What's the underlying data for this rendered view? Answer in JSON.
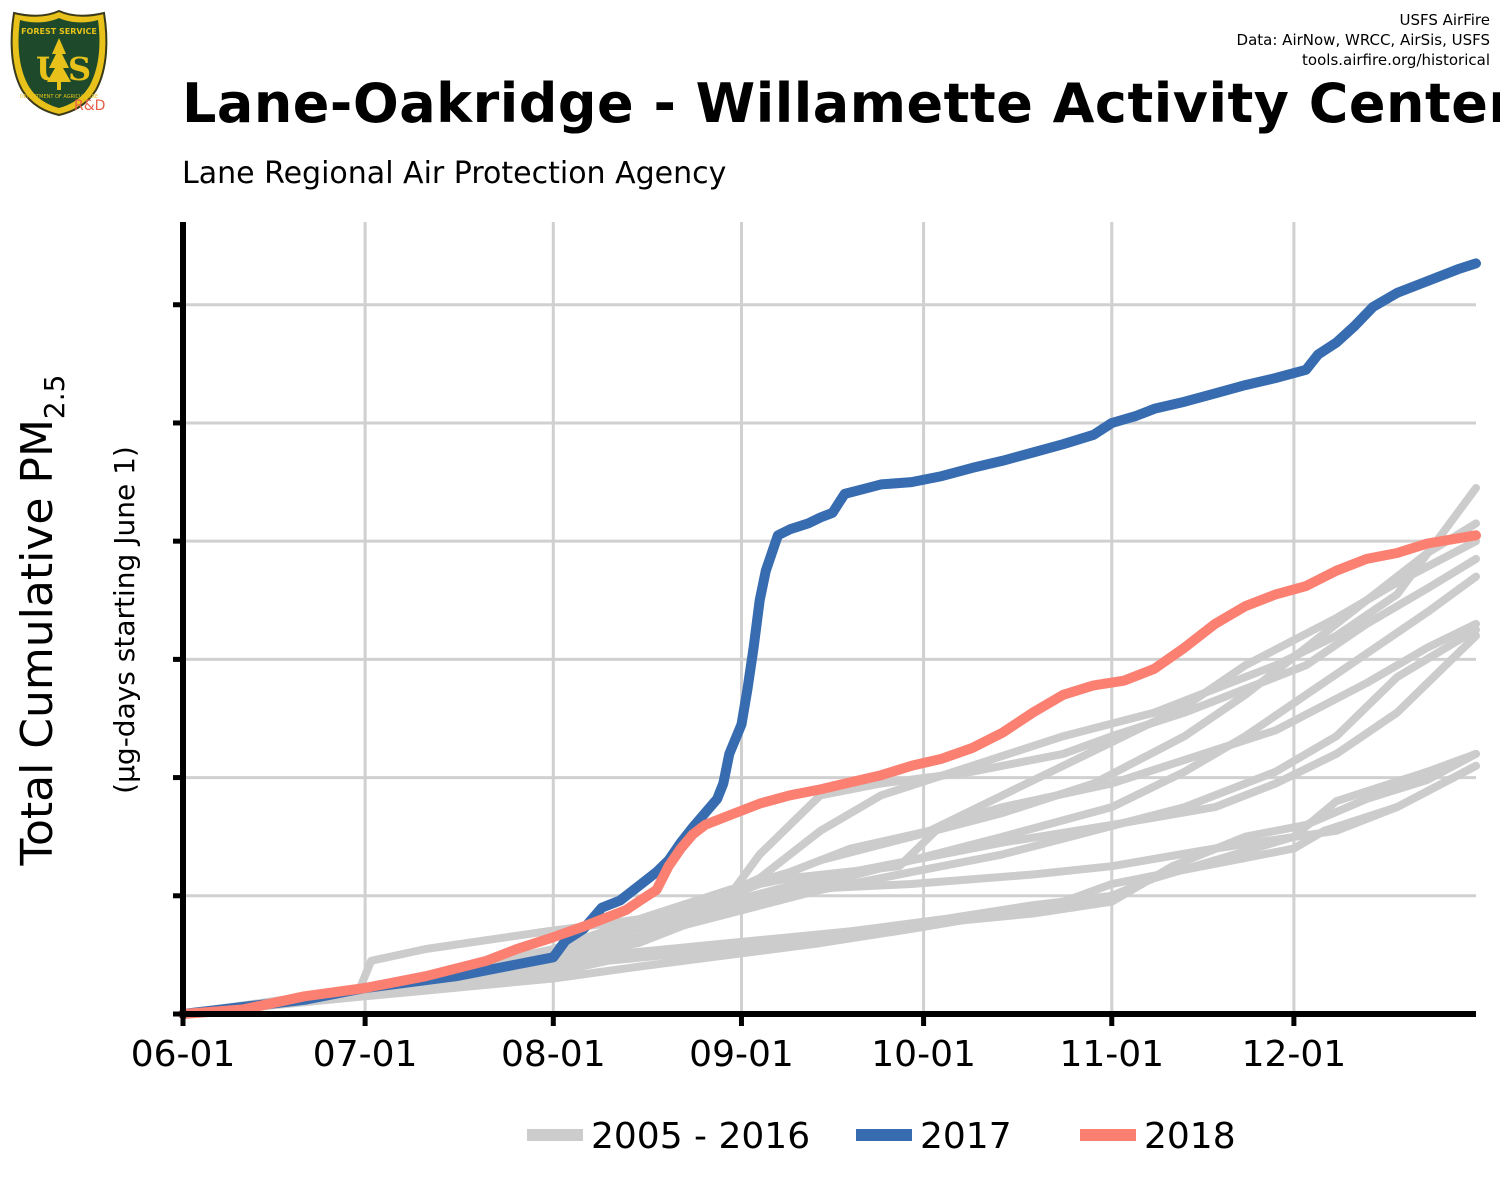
{
  "header": {
    "title": "Lane-Oakridge - Willamette Activity Center",
    "subtitle": "Lane Regional Air Protection Agency",
    "credits": [
      "USFS AirFire",
      "Data: AirNow, WRCC, AirSis, USFS",
      "tools.airfire.org/historical"
    ]
  },
  "logo": {
    "text_top": "FOREST SERVICE",
    "text_main": "US",
    "text_bottom": "DEPARTMENT OF AGRICULTURE",
    "tag": "R&D",
    "colors": {
      "shield": "#1e4a2b",
      "border": "#e8c21a",
      "tag": "#e8604c"
    }
  },
  "chart_data": {
    "type": "line",
    "title": "Lane-Oakridge - Willamette Activity Center",
    "subtitle": "Lane Regional Air Protection Agency",
    "xlabel": "",
    "ylabel": "Total Cumulative PM",
    "ylabel_subscript": "2.5",
    "ylabel_units": "(µg-days starting June 1)",
    "x_tick_labels": [
      "06-01",
      "07-01",
      "08-01",
      "09-01",
      "10-01",
      "11-01",
      "12-01"
    ],
    "x_tick_days": [
      0,
      30,
      61,
      92,
      122,
      153,
      183
    ],
    "x_range_days": [
      0,
      213
    ],
    "y_range": [
      0,
      6.7
    ],
    "y_ticks": [
      0,
      1,
      2,
      3,
      4,
      5,
      6
    ],
    "y_tick_labels_shown": false,
    "grid": true,
    "legend_position": "bottom",
    "legend": [
      {
        "label": "2005 - 2016",
        "color": "#cccccc"
      },
      {
        "label": "2017",
        "color": "#386cb0"
      },
      {
        "label": "2018",
        "color": "#fb8072"
      }
    ],
    "series": [
      {
        "name": "2017",
        "color": "#386cb0",
        "width": 10,
        "points": [
          [
            0,
            0
          ],
          [
            10,
            0.06
          ],
          [
            20,
            0.12
          ],
          [
            30,
            0.22
          ],
          [
            45,
            0.32
          ],
          [
            55,
            0.42
          ],
          [
            61,
            0.48
          ],
          [
            62,
            0.55
          ],
          [
            63,
            0.62
          ],
          [
            66,
            0.72
          ],
          [
            69,
            0.9
          ],
          [
            72,
            0.96
          ],
          [
            75,
            1.08
          ],
          [
            78,
            1.2
          ],
          [
            80,
            1.3
          ],
          [
            82,
            1.45
          ],
          [
            84,
            1.58
          ],
          [
            86,
            1.7
          ],
          [
            88,
            1.82
          ],
          [
            89,
            1.95
          ],
          [
            90,
            2.2
          ],
          [
            92,
            2.45
          ],
          [
            93,
            2.75
          ],
          [
            94,
            3.1
          ],
          [
            95,
            3.5
          ],
          [
            96,
            3.75
          ],
          [
            98,
            4.05
          ],
          [
            100,
            4.1
          ],
          [
            103,
            4.15
          ],
          [
            105,
            4.2
          ],
          [
            107,
            4.24
          ],
          [
            108,
            4.32
          ],
          [
            109,
            4.4
          ],
          [
            112,
            4.44
          ],
          [
            115,
            4.48
          ],
          [
            120,
            4.5
          ],
          [
            125,
            4.55
          ],
          [
            130,
            4.62
          ],
          [
            135,
            4.68
          ],
          [
            140,
            4.75
          ],
          [
            145,
            4.82
          ],
          [
            150,
            4.9
          ],
          [
            153,
            5.0
          ],
          [
            157,
            5.06
          ],
          [
            160,
            5.12
          ],
          [
            165,
            5.18
          ],
          [
            170,
            5.25
          ],
          [
            175,
            5.32
          ],
          [
            180,
            5.38
          ],
          [
            185,
            5.45
          ],
          [
            187,
            5.58
          ],
          [
            190,
            5.68
          ],
          [
            193,
            5.82
          ],
          [
            196,
            5.98
          ],
          [
            200,
            6.1
          ],
          [
            205,
            6.2
          ],
          [
            210,
            6.3
          ],
          [
            213,
            6.35
          ]
        ]
      },
      {
        "name": "2018",
        "color": "#fb8072",
        "width": 10,
        "points": [
          [
            0,
            0
          ],
          [
            10,
            0.04
          ],
          [
            20,
            0.15
          ],
          [
            30,
            0.22
          ],
          [
            40,
            0.32
          ],
          [
            50,
            0.45
          ],
          [
            55,
            0.55
          ],
          [
            61,
            0.65
          ],
          [
            66,
            0.74
          ],
          [
            70,
            0.82
          ],
          [
            73,
            0.88
          ],
          [
            75,
            0.95
          ],
          [
            78,
            1.05
          ],
          [
            80,
            1.25
          ],
          [
            82,
            1.4
          ],
          [
            84,
            1.52
          ],
          [
            86,
            1.6
          ],
          [
            88,
            1.64
          ],
          [
            90,
            1.68
          ],
          [
            95,
            1.78
          ],
          [
            100,
            1.85
          ],
          [
            105,
            1.9
          ],
          [
            110,
            1.96
          ],
          [
            115,
            2.02
          ],
          [
            120,
            2.1
          ],
          [
            125,
            2.16
          ],
          [
            130,
            2.25
          ],
          [
            135,
            2.38
          ],
          [
            140,
            2.55
          ],
          [
            145,
            2.7
          ],
          [
            150,
            2.78
          ],
          [
            155,
            2.82
          ],
          [
            160,
            2.92
          ],
          [
            165,
            3.1
          ],
          [
            170,
            3.3
          ],
          [
            175,
            3.45
          ],
          [
            180,
            3.55
          ],
          [
            185,
            3.62
          ],
          [
            190,
            3.75
          ],
          [
            195,
            3.85
          ],
          [
            200,
            3.9
          ],
          [
            205,
            3.98
          ],
          [
            213,
            4.05
          ]
        ]
      },
      {
        "name": "",
        "color": "#cccccc",
        "width": 8,
        "points": [
          [
            0,
            0
          ],
          [
            20,
            0.1
          ],
          [
            29,
            0.2
          ],
          [
            31,
            0.45
          ],
          [
            40,
            0.55
          ],
          [
            60,
            0.7
          ],
          [
            75,
            0.8
          ],
          [
            90,
            0.95
          ],
          [
            100,
            1.05
          ],
          [
            120,
            1.1
          ],
          [
            140,
            1.18
          ],
          [
            153,
            1.25
          ],
          [
            170,
            1.4
          ],
          [
            190,
            1.55
          ],
          [
            200,
            1.75
          ],
          [
            213,
            2.1
          ]
        ]
      },
      {
        "name": "",
        "color": "#cccccc",
        "width": 8,
        "points": [
          [
            0,
            0
          ],
          [
            30,
            0.18
          ],
          [
            61,
            0.4
          ],
          [
            70,
            0.5
          ],
          [
            80,
            0.55
          ],
          [
            100,
            0.65
          ],
          [
            120,
            0.75
          ],
          [
            140,
            0.85
          ],
          [
            153,
            0.95
          ],
          [
            163,
            1.25
          ],
          [
            175,
            1.5
          ],
          [
            185,
            1.6
          ],
          [
            195,
            1.82
          ],
          [
            205,
            1.98
          ],
          [
            213,
            2.2
          ]
        ]
      },
      {
        "name": "",
        "color": "#cccccc",
        "width": 8,
        "points": [
          [
            0,
            0
          ],
          [
            30,
            0.2
          ],
          [
            61,
            0.5
          ],
          [
            75,
            0.75
          ],
          [
            90,
            1.0
          ],
          [
            95,
            1.35
          ],
          [
            100,
            1.6
          ],
          [
            105,
            1.85
          ],
          [
            115,
            1.95
          ],
          [
            130,
            2.05
          ],
          [
            145,
            2.2
          ],
          [
            153,
            2.35
          ],
          [
            165,
            2.55
          ],
          [
            175,
            2.75
          ],
          [
            185,
            2.95
          ],
          [
            195,
            3.3
          ],
          [
            205,
            3.6
          ],
          [
            213,
            3.85
          ]
        ]
      },
      {
        "name": "",
        "color": "#cccccc",
        "width": 8,
        "points": [
          [
            0,
            0
          ],
          [
            30,
            0.22
          ],
          [
            61,
            0.52
          ],
          [
            75,
            0.8
          ],
          [
            90,
            1.05
          ],
          [
            100,
            1.15
          ],
          [
            118,
            1.25
          ],
          [
            125,
            1.6
          ],
          [
            135,
            1.75
          ],
          [
            153,
            1.95
          ],
          [
            165,
            2.15
          ],
          [
            180,
            2.4
          ],
          [
            195,
            2.8
          ],
          [
            205,
            3.1
          ],
          [
            213,
            3.3
          ]
        ]
      },
      {
        "name": "",
        "color": "#cccccc",
        "width": 8,
        "points": [
          [
            0,
            0
          ],
          [
            30,
            0.2
          ],
          [
            61,
            0.45
          ],
          [
            75,
            0.6
          ],
          [
            90,
            0.9
          ],
          [
            105,
            1.1
          ],
          [
            120,
            1.3
          ],
          [
            135,
            1.45
          ],
          [
            153,
            1.6
          ],
          [
            170,
            1.75
          ],
          [
            180,
            1.95
          ],
          [
            190,
            2.2
          ],
          [
            200,
            2.55
          ],
          [
            213,
            3.2
          ]
        ]
      },
      {
        "name": "",
        "color": "#cccccc",
        "width": 8,
        "points": [
          [
            0,
            0
          ],
          [
            30,
            0.2
          ],
          [
            61,
            0.45
          ],
          [
            75,
            0.65
          ],
          [
            90,
            0.95
          ],
          [
            105,
            1.15
          ],
          [
            120,
            1.3
          ],
          [
            135,
            1.5
          ],
          [
            153,
            1.75
          ],
          [
            165,
            2.05
          ],
          [
            175,
            2.35
          ],
          [
            185,
            2.7
          ],
          [
            195,
            3.05
          ],
          [
            205,
            3.4
          ],
          [
            213,
            3.7
          ]
        ]
      },
      {
        "name": "",
        "color": "#cccccc",
        "width": 8,
        "points": [
          [
            0,
            0
          ],
          [
            30,
            0.18
          ],
          [
            61,
            0.35
          ],
          [
            70,
            0.45
          ],
          [
            80,
            0.5
          ],
          [
            95,
            0.6
          ],
          [
            110,
            0.7
          ],
          [
            125,
            0.8
          ],
          [
            140,
            0.92
          ],
          [
            153,
            1.0
          ],
          [
            160,
            1.15
          ],
          [
            170,
            1.3
          ],
          [
            183,
            1.5
          ],
          [
            190,
            1.8
          ],
          [
            205,
            2.05
          ],
          [
            213,
            2.2
          ]
        ]
      },
      {
        "name": "",
        "color": "#cccccc",
        "width": 8,
        "points": [
          [
            0,
            0
          ],
          [
            30,
            0.2
          ],
          [
            61,
            0.5
          ],
          [
            80,
            0.8
          ],
          [
            95,
            1.15
          ],
          [
            105,
            1.55
          ],
          [
            115,
            1.85
          ],
          [
            130,
            2.1
          ],
          [
            145,
            2.35
          ],
          [
            160,
            2.55
          ],
          [
            170,
            2.75
          ],
          [
            180,
            2.95
          ],
          [
            190,
            3.2
          ],
          [
            200,
            3.55
          ],
          [
            213,
            4.45
          ]
        ]
      },
      {
        "name": "",
        "color": "#cccccc",
        "width": 8,
        "points": [
          [
            0,
            0
          ],
          [
            30,
            0.2
          ],
          [
            61,
            0.5
          ],
          [
            75,
            0.75
          ],
          [
            90,
            1.0
          ],
          [
            105,
            1.3
          ],
          [
            120,
            1.5
          ],
          [
            135,
            1.7
          ],
          [
            150,
            1.95
          ],
          [
            165,
            2.35
          ],
          [
            175,
            2.7
          ],
          [
            185,
            3.1
          ],
          [
            195,
            3.5
          ],
          [
            205,
            3.9
          ],
          [
            213,
            4.15
          ]
        ]
      },
      {
        "name": "",
        "color": "#cccccc",
        "width": 8,
        "points": [
          [
            0,
            0
          ],
          [
            30,
            0.15
          ],
          [
            61,
            0.3
          ],
          [
            75,
            0.4
          ],
          [
            90,
            0.5
          ],
          [
            105,
            0.6
          ],
          [
            120,
            0.72
          ],
          [
            135,
            0.85
          ],
          [
            145,
            0.95
          ],
          [
            153,
            1.1
          ],
          [
            163,
            1.2
          ],
          [
            173,
            1.3
          ],
          [
            183,
            1.4
          ],
          [
            188,
            1.55
          ],
          [
            200,
            1.75
          ],
          [
            213,
            2.1
          ]
        ]
      },
      {
        "name": "",
        "color": "#cccccc",
        "width": 8,
        "points": [
          [
            0,
            0
          ],
          [
            30,
            0.2
          ],
          [
            61,
            0.55
          ],
          [
            75,
            0.8
          ],
          [
            90,
            1.05
          ],
          [
            100,
            1.2
          ],
          [
            110,
            1.4
          ],
          [
            123,
            1.55
          ],
          [
            135,
            1.85
          ],
          [
            145,
            2.1
          ],
          [
            153,
            2.3
          ],
          [
            165,
            2.6
          ],
          [
            175,
            2.95
          ],
          [
            190,
            3.35
          ],
          [
            200,
            3.65
          ],
          [
            213,
            4.0
          ]
        ]
      },
      {
        "name": "",
        "color": "#cccccc",
        "width": 8,
        "points": [
          [
            0,
            0
          ],
          [
            30,
            0.18
          ],
          [
            61,
            0.45
          ],
          [
            75,
            0.65
          ],
          [
            90,
            0.85
          ],
          [
            105,
            1.05
          ],
          [
            120,
            1.2
          ],
          [
            135,
            1.35
          ],
          [
            150,
            1.55
          ],
          [
            165,
            1.75
          ],
          [
            180,
            2.05
          ],
          [
            190,
            2.35
          ],
          [
            200,
            2.85
          ],
          [
            213,
            3.25
          ]
        ]
      }
    ]
  }
}
